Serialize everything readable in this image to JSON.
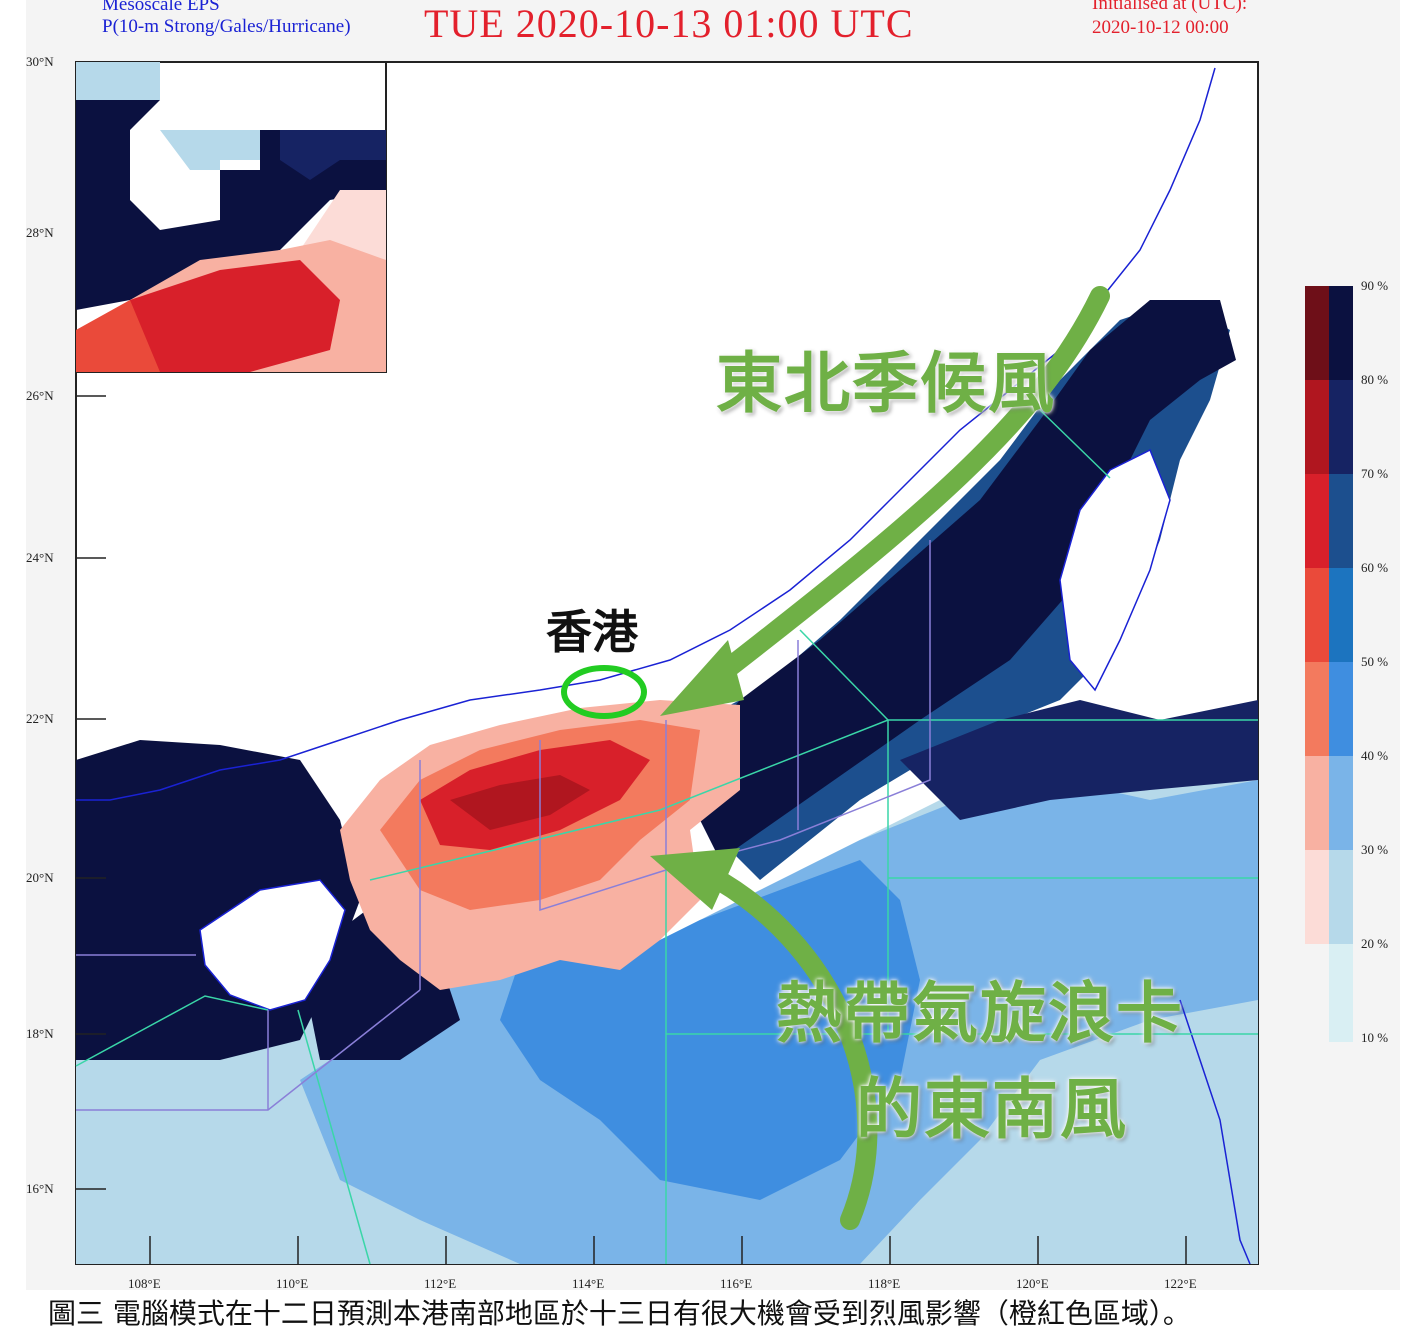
{
  "header": {
    "model_line1": "Mesoscale EPS",
    "model_line2": "P(10-m Strong/Gales/Hurricane)",
    "valid_time": "TUE 2020-10-13 01:00 UTC",
    "init_label": "Initialised at (UTC):",
    "init_time": "2020-10-12 00:00"
  },
  "axes": {
    "lat_labels": [
      "30°N",
      "28°N",
      "26°N",
      "24°N",
      "22°N",
      "20°N",
      "18°N",
      "16°N"
    ],
    "lon_labels": [
      "108°E",
      "110°E",
      "112°E",
      "114°E",
      "116°E",
      "118°E",
      "120°E",
      "122°E"
    ]
  },
  "colorbar": {
    "labels": [
      "90 %",
      "80 %",
      "70 %",
      "60 %",
      "50 %",
      "40 %",
      "30 %",
      "20 %",
      "10 %"
    ],
    "red_scale": [
      "#6e0f18",
      "#b0161f",
      "#d8202a",
      "#ea4a3a",
      "#f37a5e",
      "#f8b1a2",
      "#fcdcd7"
    ],
    "blue_scale": [
      "#0b1140",
      "#162363",
      "#1c4f8e",
      "#1c74bf",
      "#3f8ee0",
      "#7ab4e8",
      "#b6d9ea",
      "#d9eff3"
    ]
  },
  "annotations": {
    "hong_kong": "香港",
    "monsoon": "東北季候風",
    "cyclone_line1": "熱帶氣旋浪卡",
    "cyclone_line2": "的東南風",
    "arrow_color": "#6fb046",
    "circle_color": "#22cc22"
  },
  "caption": "圖三 電腦模式在十二日預測本港南部地區於十三日有很大機會受到烈風影響（橙紅色區域）。"
}
